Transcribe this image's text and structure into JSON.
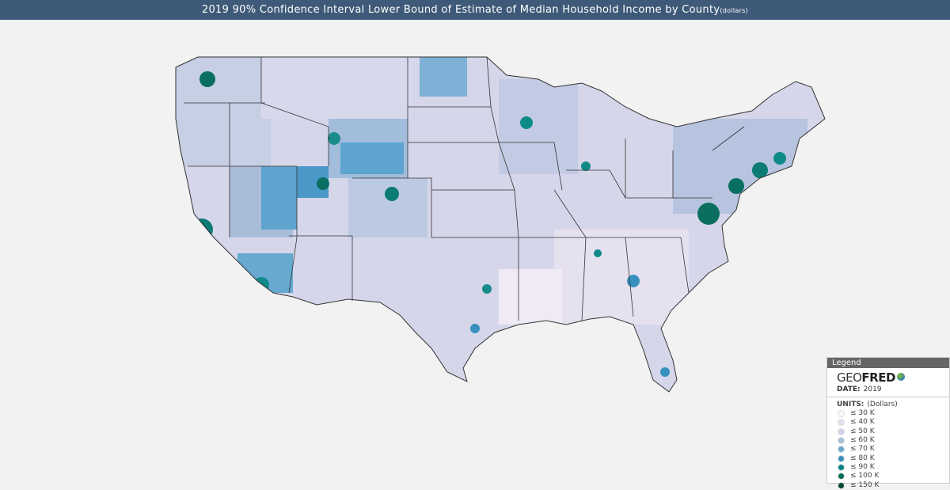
{
  "header": {
    "title": "2019 90% Confidence Interval Lower Bound of Estimate of Median Household Income by County",
    "units_suffix": "(dollars)"
  },
  "legend": {
    "heading": "Legend",
    "logo_geo": "GEO",
    "logo_fred": "FRED",
    "date_label": "DATE:",
    "date_value": "2019",
    "units_label": "UNITS:",
    "units_value": "(Dollars)",
    "items": [
      {
        "label": "≤ 30 K",
        "color": "#fbf6fb"
      },
      {
        "label": "≤ 40 K",
        "color": "#e6dfee"
      },
      {
        "label": "≤ 50 K",
        "color": "#d0d1e6"
      },
      {
        "label": "≤ 60 K",
        "color": "#a6bddb"
      },
      {
        "label": "≤ 70 K",
        "color": "#67a9cf"
      },
      {
        "label": "≤ 80 K",
        "color": "#3690c0"
      },
      {
        "label": "≤ 90 K",
        "color": "#02818a"
      },
      {
        "label": "≤ 100 K",
        "color": "#016c59"
      },
      {
        "label": "≤ 150 K",
        "color": "#014636"
      }
    ]
  }
}
